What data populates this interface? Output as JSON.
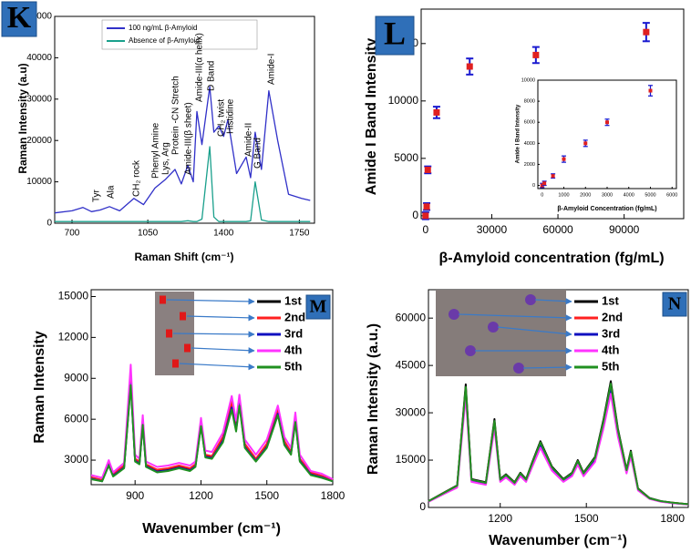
{
  "chart_data": [
    {
      "type": "line",
      "panel": "K",
      "xlabel": "Raman Shift (cm⁻¹)",
      "ylabel": "Raman Intensity (a.u)",
      "xlim": [
        620,
        1820
      ],
      "xticks": [
        700,
        1050,
        1400,
        1750
      ],
      "ylim": [
        0,
        50000
      ],
      "yticks": [
        0,
        10000,
        20000,
        30000,
        40000,
        50000
      ],
      "legend": "upper left",
      "x": [
        620,
        700,
        750,
        790,
        830,
        873,
        920,
        986,
        1030,
        1083,
        1130,
        1176,
        1205,
        1235,
        1260,
        1277,
        1300,
        1336,
        1355,
        1378,
        1400,
        1420,
        1460,
        1504,
        1525,
        1546,
        1575,
        1609,
        1650,
        1700,
        1760,
        1800
      ],
      "series": [
        {
          "name": "100 ng/mL β-Amyloid",
          "color": "#3030c8",
          "values": [
            2500,
            3000,
            3800,
            2800,
            3200,
            4000,
            3000,
            6000,
            4500,
            8500,
            10500,
            13000,
            9500,
            14000,
            10000,
            27000,
            19000,
            33000,
            22000,
            23500,
            21000,
            25000,
            12000,
            16000,
            11000,
            22000,
            13000,
            32000,
            20000,
            7000,
            6000,
            5500
          ]
        },
        {
          "name": "Absence of β-Amyloid",
          "color": "#1aa08c",
          "values": [
            400,
            400,
            400,
            400,
            400,
            400,
            400,
            400,
            400,
            400,
            400,
            400,
            400,
            600,
            400,
            400,
            1000,
            18500,
            1500,
            400,
            400,
            400,
            400,
            400,
            600,
            10000,
            800,
            400,
            400,
            400,
            400,
            400
          ]
        }
      ],
      "annotations": [
        "Tyr",
        "Ala",
        "CH₂ rock",
        "Phenyl Amine",
        "Lys, Arg",
        "Protein -CN Stretch",
        "Amide-III(β sheet)",
        "Amide-III(α helix)",
        "D Band",
        "CH₂ twist",
        "Histidine",
        "Amide-II",
        "G Band",
        "Amide-I"
      ]
    },
    {
      "type": "scatter",
      "panel": "L",
      "xlabel": "β-Amyloid concentration (fg/mL)",
      "ylabel": "Amide I Band Intensity",
      "xlim": [
        -2000,
        117000
      ],
      "xticks": [
        0,
        30000,
        60000,
        90000
      ],
      "ylim": [
        -250,
        18000
      ],
      "yticks": [
        0,
        5000,
        10000,
        15000
      ],
      "color": "#e02020",
      "error_color": "#1a1ad0",
      "x": [
        0,
        500,
        1000,
        5000,
        20000,
        50000,
        100000
      ],
      "values": [
        0,
        800,
        4000,
        9000,
        13000,
        14000,
        16000
      ],
      "errors": [
        300,
        300,
        300,
        500,
        700,
        700,
        800
      ],
      "inset": {
        "xlabel": "β-Amyloid Concentration (fg/mL)",
        "ylabel": "Amide I Band Intensity",
        "xlim": [
          -200,
          6200
        ],
        "xticks": [
          0,
          1000,
          2000,
          3000,
          4000,
          5000,
          6000
        ],
        "ylim": [
          -300,
          10000
        ],
        "yticks": [
          0,
          2000,
          4000,
          6000,
          8000,
          10000
        ],
        "x": [
          0,
          100,
          500,
          1000,
          2000,
          3000,
          5000
        ],
        "values": [
          0,
          200,
          900,
          2500,
          4000,
          6000,
          9000
        ],
        "errors": [
          200,
          200,
          200,
          300,
          300,
          300,
          500
        ]
      }
    },
    {
      "type": "line",
      "panel": "M",
      "xlabel": "Wavenumber (cm⁻¹)",
      "ylabel": "Raman Intensity",
      "xlim": [
        700,
        1800
      ],
      "xticks": [
        900,
        1200,
        1500,
        1800
      ],
      "ylim": [
        1200,
        15500
      ],
      "yticks": [
        3000,
        6000,
        9000,
        12000,
        15000
      ],
      "legend": "upper right",
      "x": [
        700,
        750,
        780,
        800,
        850,
        880,
        900,
        920,
        935,
        950,
        1000,
        1050,
        1100,
        1150,
        1175,
        1200,
        1220,
        1250,
        1300,
        1340,
        1360,
        1375,
        1400,
        1450,
        1500,
        1550,
        1580,
        1610,
        1630,
        1650,
        1700,
        1750,
        1800
      ],
      "series": [
        {
          "name": "1st",
          "color": "#000000",
          "values": [
            1700,
            1500,
            2700,
            1900,
            2500,
            8800,
            3000,
            2800,
            5800,
            2600,
            2200,
            2300,
            2500,
            2300,
            2600,
            5700,
            3300,
            3200,
            4500,
            7000,
            5300,
            7300,
            4000,
            3000,
            4000,
            6500,
            4200,
            3500,
            6000,
            3000,
            2000,
            1800,
            1500
          ]
        },
        {
          "name": "2nd",
          "color": "#ff2020",
          "values": [
            1750,
            1550,
            2800,
            2000,
            2600,
            9200,
            3100,
            2900,
            6000,
            2700,
            2300,
            2400,
            2600,
            2400,
            2700,
            5900,
            3400,
            3300,
            4700,
            7300,
            5500,
            7500,
            4200,
            3100,
            4200,
            6700,
            4400,
            3600,
            6200,
            3100,
            2100,
            1850,
            1550
          ]
        },
        {
          "name": "3rd",
          "color": "#1010c0",
          "values": [
            1650,
            1450,
            2650,
            1850,
            2450,
            8600,
            2950,
            2750,
            5700,
            2550,
            2150,
            2250,
            2450,
            2250,
            2550,
            5600,
            3250,
            3150,
            4400,
            6850,
            5200,
            7150,
            3950,
            2950,
            3950,
            6400,
            4150,
            3450,
            5900,
            2950,
            1950,
            1750,
            1450
          ]
        },
        {
          "name": "4th",
          "color": "#ff33ff",
          "values": [
            1900,
            1700,
            3000,
            2100,
            2800,
            10000,
            3400,
            3100,
            6300,
            2900,
            2500,
            2600,
            2800,
            2600,
            2900,
            6100,
            3700,
            3600,
            5000,
            7700,
            5900,
            7800,
            4500,
            3400,
            4500,
            7000,
            4700,
            3900,
            6500,
            3400,
            2200,
            2000,
            1600
          ]
        },
        {
          "name": "5th",
          "color": "#209020",
          "values": [
            1600,
            1450,
            2600,
            1800,
            2400,
            8500,
            2900,
            2700,
            5600,
            2500,
            2100,
            2200,
            2400,
            2200,
            2500,
            5500,
            3200,
            3100,
            4300,
            6700,
            5100,
            7000,
            3900,
            2900,
            3900,
            6300,
            4100,
            3400,
            5800,
            2900,
            1900,
            1700,
            1450
          ]
        }
      ]
    },
    {
      "type": "line",
      "panel": "N",
      "xlabel": "Wavenumber (cm⁻¹)",
      "ylabel": "Raman Intensity (a.u.)",
      "xlim": [
        950,
        1855
      ],
      "xticks": [
        1200,
        1500,
        1800
      ],
      "ylim": [
        0,
        69000
      ],
      "yticks": [
        0,
        15000,
        30000,
        45000,
        60000
      ],
      "legend": "upper right",
      "x": [
        950,
        1000,
        1050,
        1080,
        1100,
        1150,
        1180,
        1200,
        1220,
        1250,
        1270,
        1290,
        1310,
        1340,
        1380,
        1420,
        1450,
        1470,
        1490,
        1530,
        1560,
        1585,
        1610,
        1640,
        1655,
        1680,
        1720,
        1760,
        1800,
        1855
      ],
      "series": [
        {
          "name": "1st",
          "color": "#000000",
          "values": [
            2000,
            4500,
            7000,
            39000,
            9000,
            8000,
            28000,
            9000,
            10500,
            8000,
            11000,
            9000,
            14000,
            21000,
            13000,
            9000,
            11000,
            15000,
            11000,
            16000,
            28000,
            40000,
            25000,
            12000,
            18000,
            6000,
            3000,
            2000,
            1500,
            1000
          ]
        },
        {
          "name": "2nd",
          "color": "#ff2020",
          "values": [
            1900,
            4400,
            6800,
            37800,
            8700,
            7800,
            27200,
            8700,
            10200,
            7800,
            10700,
            8700,
            13600,
            20400,
            12600,
            8700,
            10700,
            14600,
            10700,
            15500,
            27200,
            38800,
            24300,
            11600,
            17500,
            5800,
            2900,
            1900,
            1500,
            1000
          ]
        },
        {
          "name": "3rd",
          "color": "#1010c0",
          "values": [
            1900,
            4300,
            6700,
            37100,
            8600,
            7600,
            26600,
            8600,
            10000,
            7600,
            10500,
            8600,
            13300,
            20000,
            12400,
            8600,
            10500,
            14300,
            10500,
            15200,
            26600,
            38000,
            23800,
            11400,
            17100,
            5700,
            2900,
            1900,
            1400,
            1000
          ]
        },
        {
          "name": "4th",
          "color": "#ff33ff",
          "values": [
            1800,
            4100,
            6300,
            35100,
            8100,
            7200,
            25200,
            8100,
            9500,
            7200,
            9900,
            8100,
            12600,
            18900,
            11700,
            8100,
            9900,
            13500,
            9900,
            14400,
            25200,
            36000,
            22500,
            10800,
            16200,
            5400,
            2700,
            1800,
            1400,
            900
          ]
        },
        {
          "name": "5th",
          "color": "#209020",
          "values": [
            2000,
            4400,
            6900,
            38200,
            8800,
            7800,
            27400,
            8800,
            10300,
            7800,
            10800,
            8800,
            13700,
            20600,
            12700,
            8800,
            10800,
            14700,
            10800,
            15700,
            27400,
            39200,
            24500,
            11800,
            17600,
            5900,
            2900,
            2000,
            1500,
            1000
          ]
        }
      ]
    }
  ]
}
